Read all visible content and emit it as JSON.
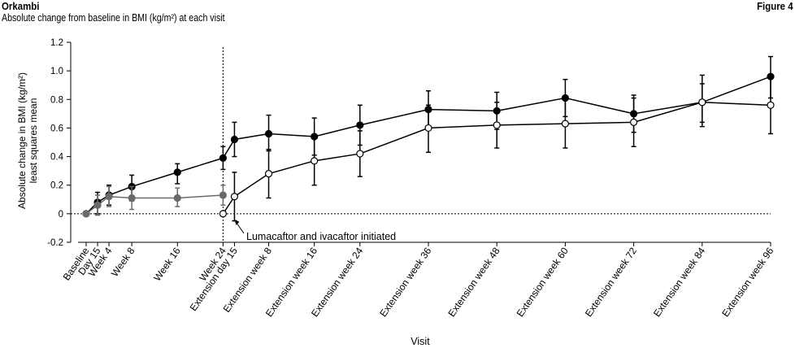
{
  "header": {
    "brand": "Orkambi",
    "subtitle": "Absolute change from baseline in BMI (kg/m²) at each visit",
    "figure_label": "Figure 4"
  },
  "chart_data": {
    "type": "line",
    "xlabel": "Visit",
    "ylabel": "Absolute change in BMI (kg/m²)",
    "ylabel_line2": "least squares mean",
    "ylim": [
      -0.2,
      1.2
    ],
    "yticks": [
      -0.2,
      0,
      0.2,
      0.4,
      0.6,
      0.8,
      1.0,
      1.2
    ],
    "ytick_labels": [
      "-0.2",
      "0",
      "0.2",
      "0.4",
      "0.6",
      "0.8",
      "1.0",
      "1.2"
    ],
    "categories": [
      "Baseline",
      "Day 15",
      "Week 4",
      "Week 8",
      "Week 16",
      "Week 24",
      "Extension day 15",
      "Extension week 8",
      "Extension week 16",
      "Extension week 24",
      "Extension week 36",
      "Extension week 48",
      "Extension week 60",
      "Extension week 72",
      "Extension week 84",
      "Extension week 96"
    ],
    "x": [
      0,
      2,
      4,
      8,
      16,
      24,
      26,
      32,
      40,
      48,
      60,
      72,
      84,
      96,
      108,
      120
    ],
    "reference_line_y": 0,
    "vertical_line_x": 24,
    "annotation": {
      "text": "Lumacaftor and ivacaftor initiated",
      "points_to_x": 26
    },
    "series": [
      {
        "marker": "filled",
        "color": "#000000",
        "x": [
          0,
          2,
          4,
          8,
          16,
          24,
          26,
          32,
          40,
          48,
          60,
          72,
          84,
          96,
          108,
          120
        ],
        "values": [
          0,
          0.08,
          0.13,
          0.19,
          0.29,
          0.39,
          0.52,
          0.56,
          0.54,
          0.62,
          0.73,
          0.72,
          0.81,
          0.7,
          0.78,
          0.96
        ],
        "err_low": [
          0,
          0.0,
          0.06,
          0.09,
          0.21,
          0.31,
          0.4,
          0.44,
          0.41,
          0.48,
          0.6,
          0.59,
          0.68,
          0.57,
          0.64,
          0.81
        ],
        "err_high": [
          0,
          0.15,
          0.2,
          0.27,
          0.35,
          0.47,
          0.64,
          0.69,
          0.67,
          0.76,
          0.86,
          0.85,
          0.94,
          0.83,
          0.97,
          1.1
        ]
      },
      {
        "marker": "filled",
        "color": "#6a6a6a",
        "x": [
          0,
          2,
          4,
          8,
          16,
          24
        ],
        "values": [
          0,
          0.06,
          0.12,
          0.11,
          0.11,
          0.13
        ],
        "err_low": [
          0,
          -0.01,
          0.05,
          0.03,
          0.05,
          0.06
        ],
        "err_high": [
          0,
          0.13,
          0.19,
          0.19,
          0.18,
          0.2
        ]
      },
      {
        "marker": "open",
        "color": "#000000",
        "x": [
          24,
          26,
          32,
          40,
          48,
          60,
          72,
          84,
          96,
          108,
          120
        ],
        "values": [
          0,
          0.12,
          0.28,
          0.37,
          0.42,
          0.6,
          0.62,
          0.63,
          0.64,
          0.78,
          0.76
        ],
        "err_low": [
          0,
          -0.05,
          0.11,
          0.2,
          0.26,
          0.43,
          0.46,
          0.46,
          0.47,
          0.61,
          0.56
        ],
        "err_high": [
          0,
          0.29,
          0.45,
          0.54,
          0.58,
          0.76,
          0.78,
          0.8,
          0.81,
          0.91,
          0.96
        ]
      }
    ]
  }
}
